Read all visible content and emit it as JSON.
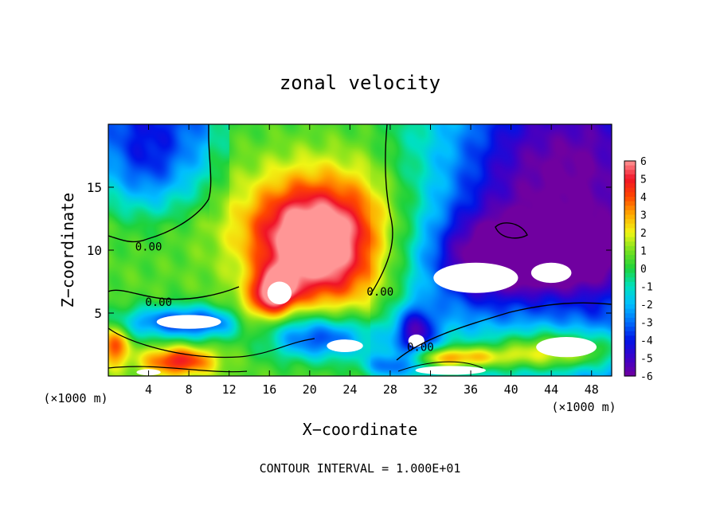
{
  "chart_data": {
    "type": "heatmap",
    "title": "zonal velocity",
    "xlabel": "X−coordinate",
    "ylabel": "Z−coordinate",
    "x_unit_left": "(×1000 m)",
    "x_unit_right": "(×1000 m)",
    "footer": "CONTOUR INTERVAL = 1.000E+01",
    "xlim": [
      0,
      50
    ],
    "ylim": [
      0,
      20
    ],
    "x_ticks": [
      4,
      8,
      12,
      16,
      20,
      24,
      28,
      32,
      36,
      40,
      44,
      48
    ],
    "y_ticks": [
      5,
      10,
      15
    ],
    "colorbar": {
      "ticks": [
        6,
        5,
        4,
        3,
        2,
        1,
        0,
        -1,
        -2,
        -3,
        -4,
        -5,
        -6
      ],
      "range": [
        -6,
        6
      ]
    },
    "contour_labels": [
      {
        "text": "0.00",
        "x": 4,
        "z": 10.3
      },
      {
        "text": "0.00",
        "x": 5,
        "z": 5.9
      },
      {
        "text": "0.00",
        "x": 27,
        "z": 6.7
      },
      {
        "text": "0.00",
        "x": 31,
        "z": 2.3
      }
    ],
    "field_features": [
      {
        "value": 4.5,
        "x": 20,
        "z": 10.5,
        "sx": 4,
        "sz": 2.5
      },
      {
        "value": 3.3,
        "x": 21,
        "z": 12.8,
        "sx": 5.5,
        "sz": 3.2
      },
      {
        "value": 5.2,
        "x": 16.5,
        "z": 6.8,
        "sx": 1.5,
        "sz": 1.2
      },
      {
        "value": 2.5,
        "x": 14.5,
        "z": 4.5,
        "sx": 2,
        "sz": 1.2
      },
      {
        "value": 1.8,
        "x": 22,
        "z": 7.5,
        "sx": 4,
        "sz": 1.8
      },
      {
        "value": -3.5,
        "x": 43,
        "z": 16,
        "sx": 7,
        "sz": 5
      },
      {
        "value": -3.2,
        "x": 36,
        "z": 9,
        "sx": 4,
        "sz": 3
      },
      {
        "value": -4.5,
        "x": 44,
        "z": 9.5,
        "sx": 5,
        "sz": 2
      },
      {
        "value": -2.5,
        "x": 4,
        "z": 17,
        "sx": 3,
        "sz": 3
      },
      {
        "value": -4.5,
        "x": 8,
        "z": 4.3,
        "sx": 5,
        "sz": 0.9
      },
      {
        "value": -4,
        "x": 21,
        "z": 3,
        "sx": 4,
        "sz": 1.2
      },
      {
        "value": -4.5,
        "x": 30.5,
        "z": 3.5,
        "sx": 1.5,
        "sz": 1.5
      },
      {
        "value": 4.5,
        "x": 45,
        "z": 2,
        "sx": 5,
        "sz": 1.2
      },
      {
        "value": 3.8,
        "x": 34,
        "z": 1.5,
        "sx": 4,
        "sz": 0.6
      },
      {
        "value": 4.2,
        "x": 7,
        "z": 1.2,
        "sx": 2.5,
        "sz": 0.8
      },
      {
        "value": 3.5,
        "x": 0.5,
        "z": 2.5,
        "sx": 1,
        "sz": 1.2
      },
      {
        "value": -3.5,
        "x": 28,
        "z": 1,
        "sx": 2,
        "sz": 0.8
      }
    ],
    "saturated_regions": [
      {
        "value": "above",
        "x": 17,
        "z": 6.6,
        "rx": 1.2,
        "rz": 0.9
      },
      {
        "value": "below",
        "x": 8,
        "z": 4.3,
        "rx": 3.2,
        "rz": 0.55
      },
      {
        "value": "below",
        "x": 23.5,
        "z": 2.4,
        "rx": 1.8,
        "rz": 0.5
      },
      {
        "value": "below",
        "x": 36.5,
        "z": 7.8,
        "rx": 4.2,
        "rz": 1.2
      },
      {
        "value": "below",
        "x": 44,
        "z": 8.2,
        "rx": 2,
        "rz": 0.8
      },
      {
        "value": "below",
        "x": 30.6,
        "z": 2.8,
        "rx": 0.8,
        "rz": 0.5
      },
      {
        "value": "above",
        "x": 45.5,
        "z": 2.3,
        "rx": 3,
        "rz": 0.8
      },
      {
        "value": "above",
        "x": 34,
        "z": 0.45,
        "rx": 3.5,
        "rz": 0.35
      },
      {
        "value": "above",
        "x": 4,
        "z": 0.3,
        "rx": 1.2,
        "rz": 0.25
      }
    ]
  }
}
